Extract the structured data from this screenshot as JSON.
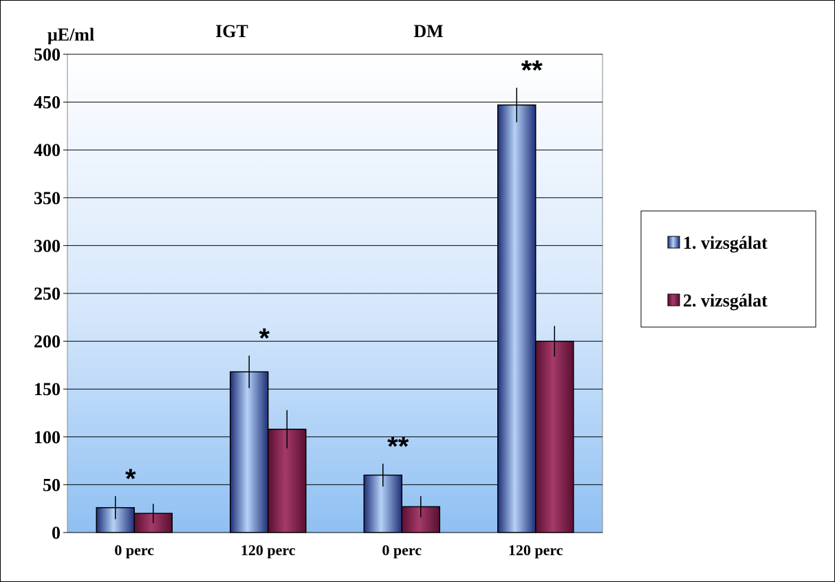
{
  "chart_data": {
    "type": "bar",
    "y_unit_label": "μE/ml",
    "group_labels": [
      "IGT",
      "DM"
    ],
    "categories": [
      "0 perc",
      "120 perc",
      "0 perc",
      "120 perc"
    ],
    "category_groups": [
      "IGT",
      "IGT",
      "DM",
      "DM"
    ],
    "series": [
      {
        "name": "1. vizsgálat",
        "values": [
          26,
          168,
          60,
          447
        ],
        "errors": [
          12,
          17,
          12,
          18
        ],
        "color": "#5b86c8"
      },
      {
        "name": "2. vizsgálat",
        "values": [
          20,
          108,
          27,
          200
        ],
        "errors": [
          10,
          20,
          11,
          16
        ],
        "color": "#8e2a57"
      }
    ],
    "annotations": [
      "*",
      "*",
      "**",
      "**"
    ],
    "ylim": [
      0,
      500
    ],
    "yticks": [
      0,
      50,
      100,
      150,
      200,
      250,
      300,
      350,
      400,
      450,
      500
    ],
    "grid": true,
    "legend_position": "right"
  }
}
